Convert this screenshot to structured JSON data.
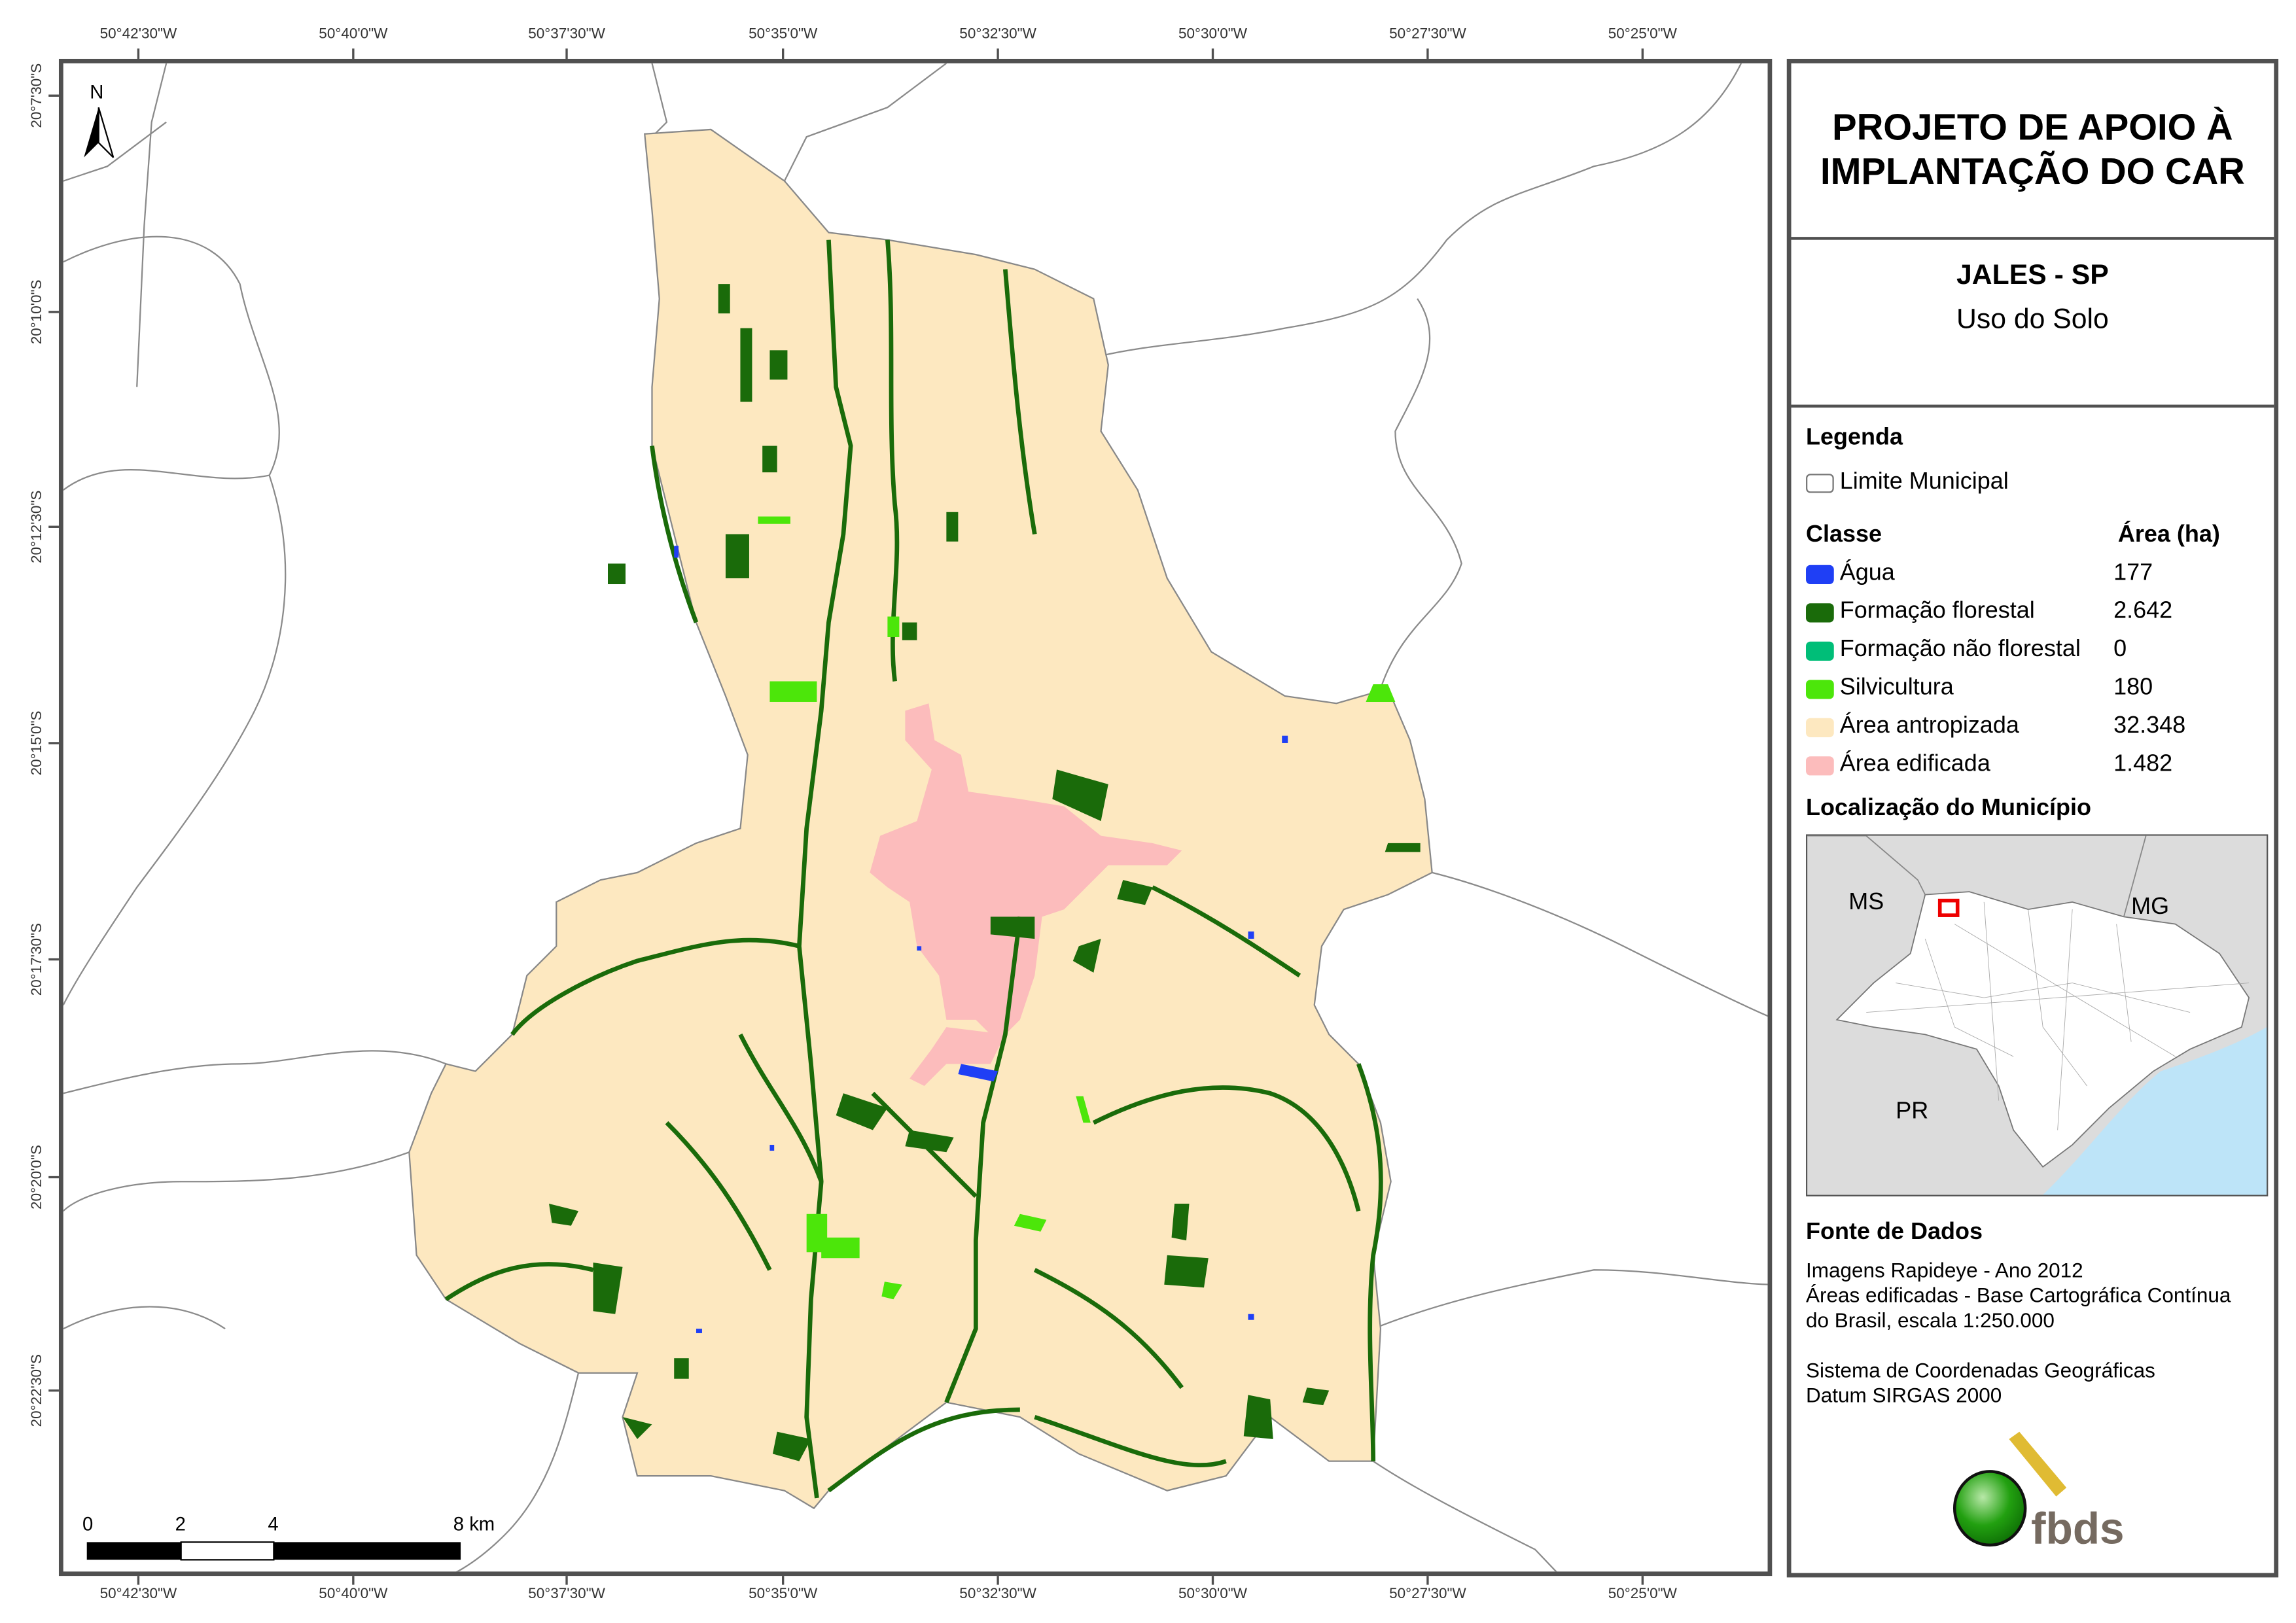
{
  "grid": {
    "longitudes": [
      "50°42'30\"W",
      "50°40'0\"W",
      "50°37'30\"W",
      "50°35'0\"W",
      "50°32'30\"W",
      "50°30'0\"W",
      "50°27'30\"W",
      "50°25'0\"W"
    ],
    "latitudes": [
      "20°7'30\"S",
      "20°10'0\"S",
      "20°12'30\"S",
      "20°15'0\"S",
      "20°17'30\"S",
      "20°20'0\"S",
      "20°22'30\"S"
    ]
  },
  "north_arrow": {
    "label": "N"
  },
  "scale_bar": {
    "labels": [
      "0",
      "2",
      "4",
      "8 km"
    ]
  },
  "panel": {
    "title": "PROJETO DE APOIO À IMPLANTAÇÃO DO CAR",
    "municipality": "JALES - SP",
    "theme": "Uso do Solo",
    "legend_title": "Legenda",
    "boundary_label": "Limite Municipal",
    "class_header": "Classe",
    "area_header": "Área (ha)",
    "classes": [
      {
        "label": "Água",
        "area": "177",
        "color": "#1f3ff5"
      },
      {
        "label": "Formação florestal",
        "area": "2.642",
        "color": "#1a6b0a"
      },
      {
        "label": "Formação não florestal",
        "area": "0",
        "color": "#00be78"
      },
      {
        "label": "Silvicultura",
        "area": "180",
        "color": "#4ce60a"
      },
      {
        "label": "Área antropizada",
        "area": "32.348",
        "color": "#fde8c0"
      },
      {
        "label": "Área edificada",
        "area": "1.482",
        "color": "#fcbcbc"
      }
    ],
    "location_title": "Localização do Município",
    "inset_labels": [
      "MS",
      "MG",
      "PR"
    ],
    "sources_title": "Fonte de Dados",
    "sources": [
      "Imagens Rapideye - Ano 2012",
      "Áreas edificadas - Base Cartográfica Contínua",
      "do Brasil, escala 1:250.000"
    ],
    "crs": [
      "Sistema de Coordenadas Geográficas",
      "Datum SIRGAS 2000"
    ],
    "logo_text": "fbds"
  }
}
